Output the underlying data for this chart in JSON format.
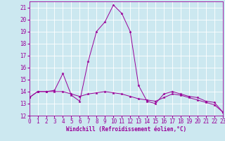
{
  "xlabel": "Windchill (Refroidissement éolien,°C)",
  "x_values": [
    0,
    1,
    2,
    3,
    4,
    5,
    6,
    7,
    8,
    9,
    10,
    11,
    12,
    13,
    14,
    15,
    16,
    17,
    18,
    19,
    20,
    21,
    22,
    23
  ],
  "series1": [
    13.5,
    14.0,
    14.0,
    14.1,
    15.5,
    13.7,
    13.2,
    16.5,
    19.0,
    19.8,
    21.2,
    20.5,
    19.0,
    14.5,
    13.2,
    13.0,
    13.8,
    14.0,
    13.8,
    13.6,
    13.5,
    13.2,
    13.1,
    12.3
  ],
  "series2": [
    13.5,
    14.0,
    14.0,
    14.0,
    14.0,
    13.8,
    13.6,
    13.8,
    13.9,
    14.0,
    13.9,
    13.8,
    13.6,
    13.4,
    13.3,
    13.2,
    13.5,
    13.8,
    13.7,
    13.5,
    13.3,
    13.1,
    12.9,
    12.3
  ],
  "line_color": "#990099",
  "bg_color": "#cce8f0",
  "grid_color": "#ffffff",
  "xlim": [
    0,
    23
  ],
  "ylim": [
    12,
    21.5
  ],
  "yticks": [
    12,
    13,
    14,
    15,
    16,
    17,
    18,
    19,
    20,
    21
  ],
  "xticks": [
    0,
    1,
    2,
    3,
    4,
    5,
    6,
    7,
    8,
    9,
    10,
    11,
    12,
    13,
    14,
    15,
    16,
    17,
    18,
    19,
    20,
    21,
    22,
    23
  ],
  "tick_fontsize": 5.5,
  "xlabel_fontsize": 5.5
}
